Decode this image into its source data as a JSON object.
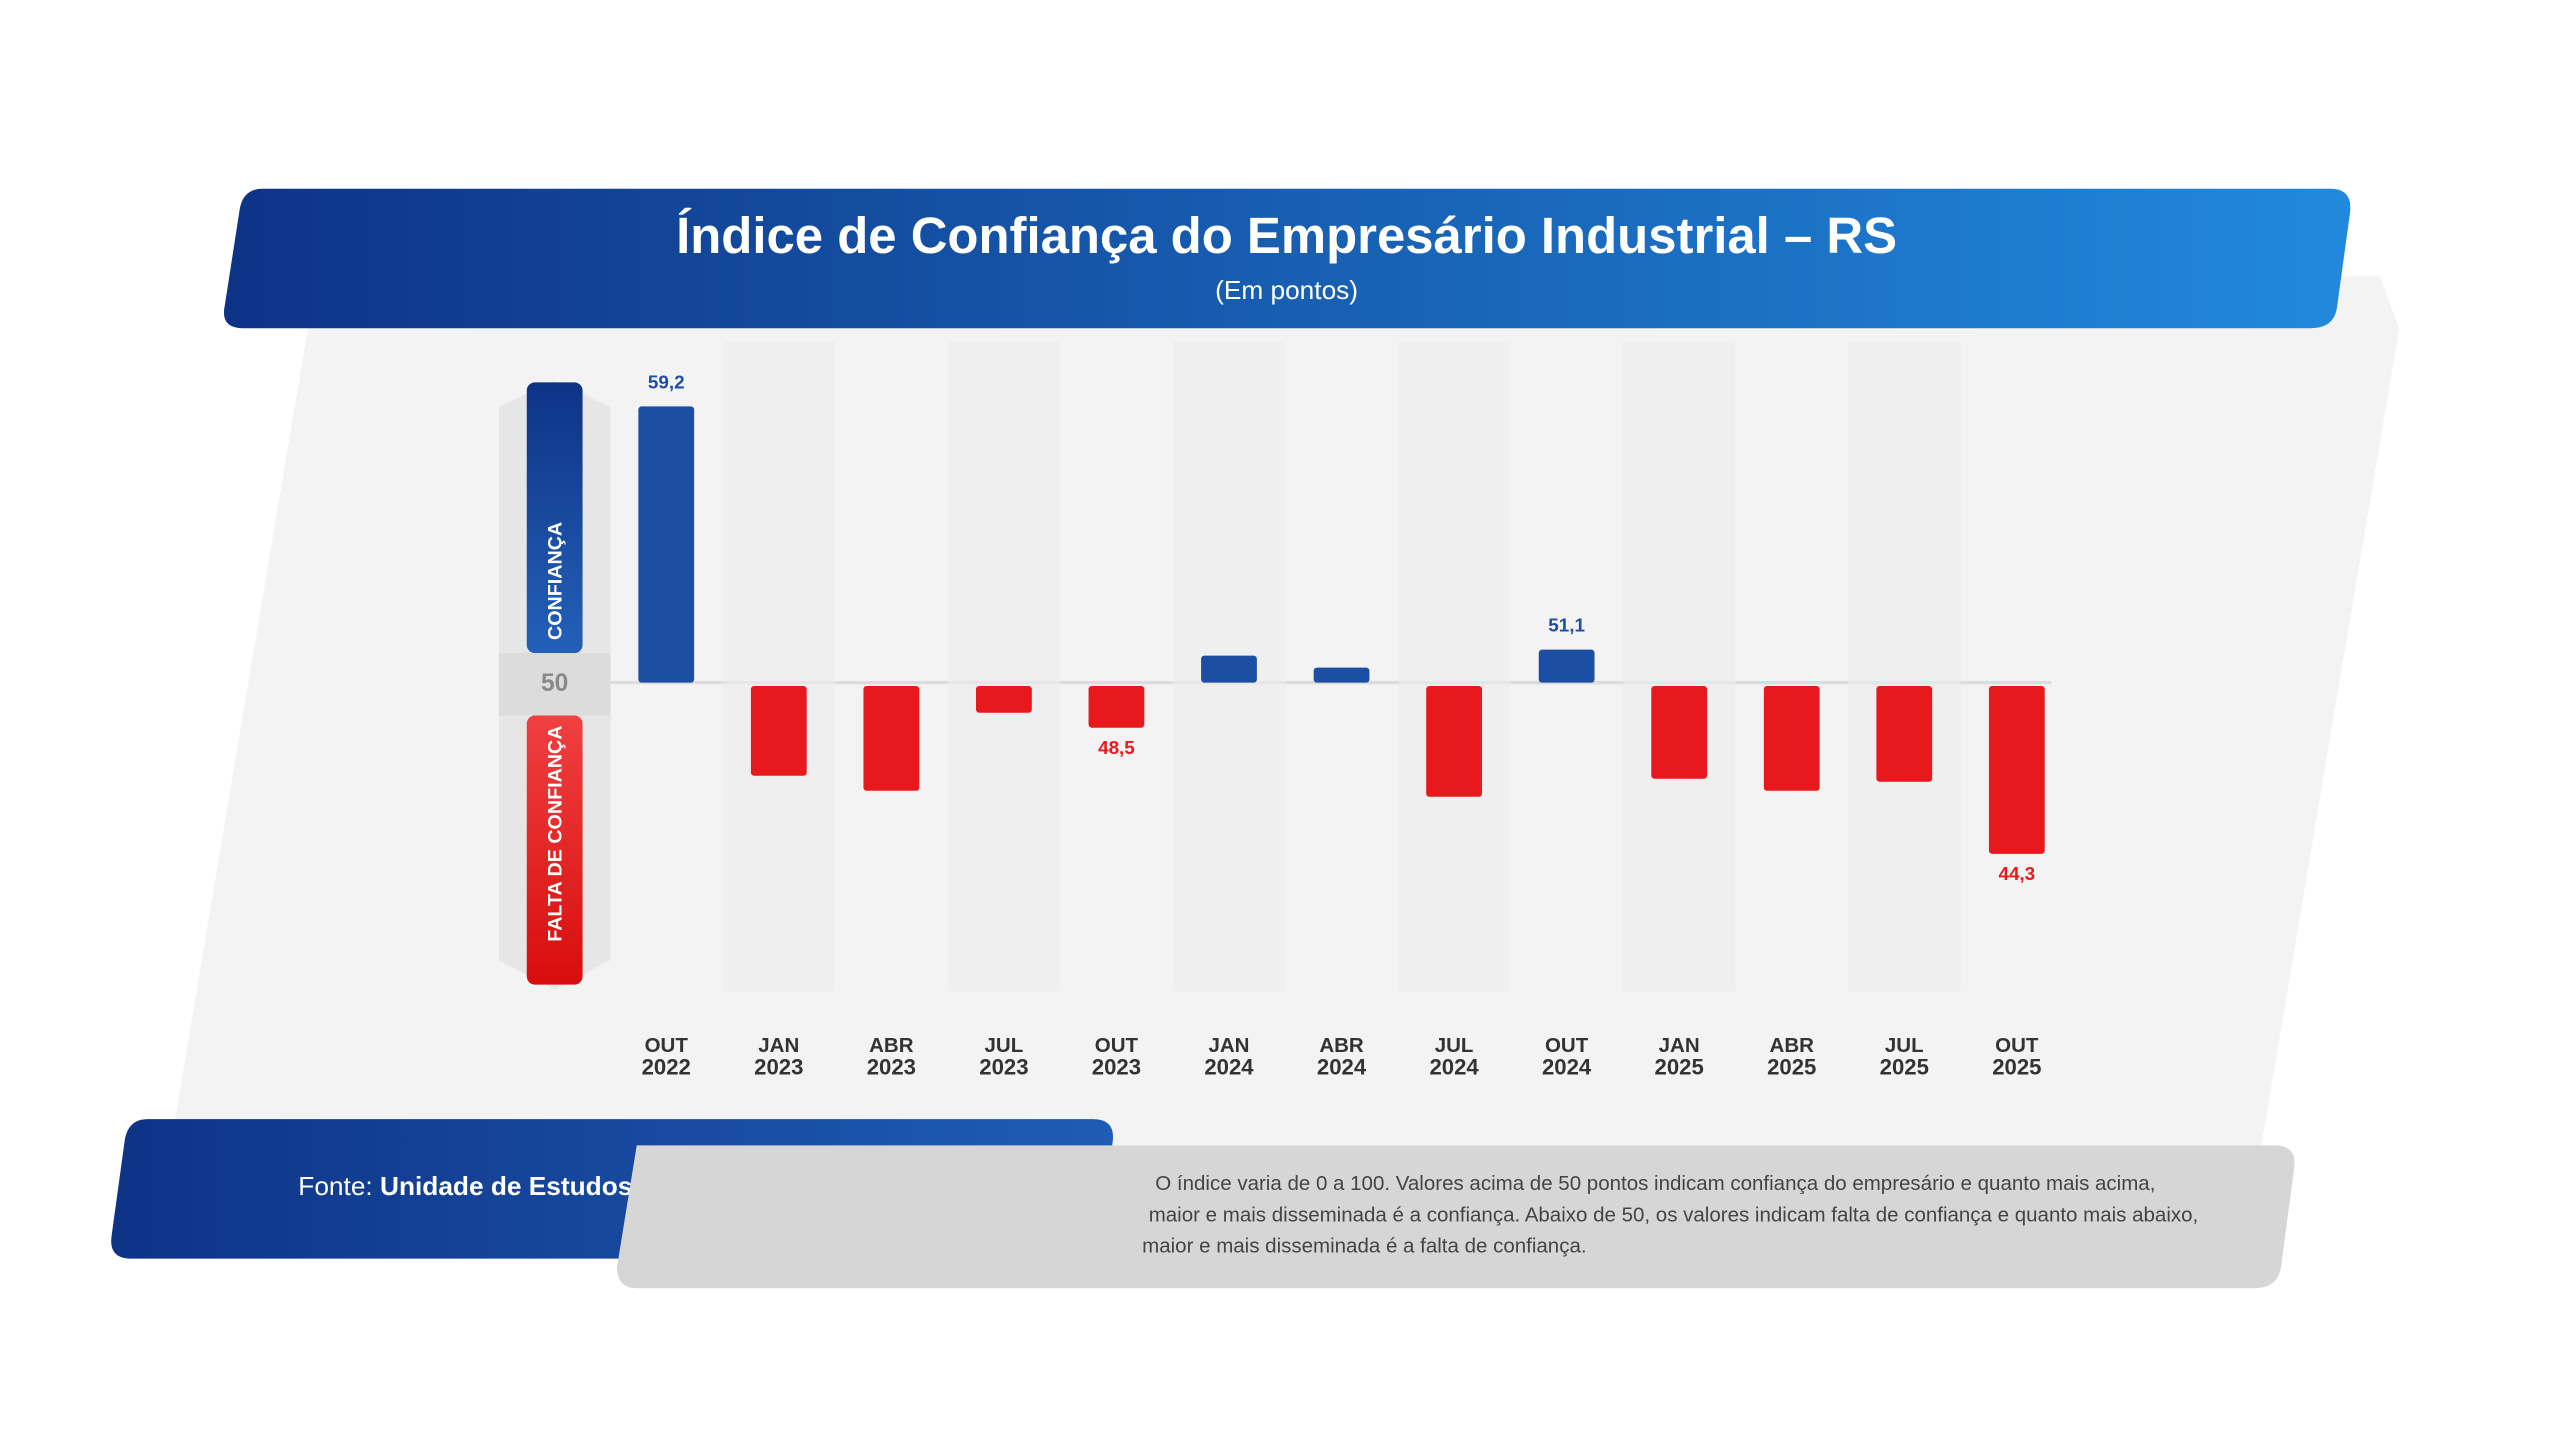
{
  "chart_data": {
    "type": "diverging-bar",
    "title": "Índice de Confiança do Empresário Industrial – RS",
    "subtitle": "(Em pontos)",
    "categories": [
      "OUT 2022",
      "JAN 2023",
      "ABR 2023",
      "JUL 2023",
      "OUT 2023",
      "JAN 2024",
      "ABR 2024",
      "JUL 2024",
      "OUT 2024",
      "JAN 2025",
      "ABR 2025",
      "JUL 2025",
      "OUT 2025"
    ],
    "values": [
      59.2,
      46.9,
      46.4,
      49.0,
      48.5,
      50.9,
      50.5,
      46.2,
      51.1,
      46.8,
      46.4,
      46.7,
      44.3
    ],
    "value_labels": [
      "59,2",
      null,
      null,
      null,
      "48,5",
      null,
      null,
      null,
      "51,1",
      null,
      null,
      null,
      "44,3"
    ],
    "baseline": 50,
    "ylim": [
      40,
      60
    ],
    "positive_color": "#1c4ea3",
    "negative_color": "#e8191c",
    "upper_label": "CONFIANÇA",
    "lower_label": "FALTA DE CONFIANÇA",
    "source_label": "Fonte:",
    "source": "Unidade de Estudos Econômicos – FIERGS",
    "note": [
      "O índice varia de 0 a 100. Valores acima de 50 pontos indicam confiança do empresário e quanto mais acima,",
      "maior e mais disseminada é a confiança. Abaixo de 50, os valores indicam falta de confiança e quanto mais abaixo,",
      "maior e mais disseminada é a falta de confiança."
    ]
  }
}
